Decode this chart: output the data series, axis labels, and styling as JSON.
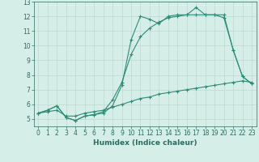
{
  "title": "",
  "xlabel": "Humidex (Indice chaleur)",
  "ylabel": "",
  "x_values": [
    0,
    1,
    2,
    3,
    4,
    5,
    6,
    7,
    8,
    9,
    10,
    11,
    12,
    13,
    14,
    15,
    16,
    17,
    18,
    19,
    20,
    21,
    22,
    23
  ],
  "line1": [
    5.4,
    5.6,
    5.9,
    5.1,
    4.9,
    5.2,
    5.3,
    5.4,
    5.9,
    7.3,
    10.4,
    12.0,
    11.8,
    11.5,
    12.0,
    12.1,
    12.1,
    12.6,
    12.1,
    12.1,
    11.9,
    9.7,
    7.9,
    7.4
  ],
  "line2": [
    5.4,
    5.6,
    5.9,
    5.1,
    4.9,
    5.2,
    5.3,
    5.5,
    6.3,
    7.5,
    9.4,
    10.6,
    11.2,
    11.6,
    11.9,
    12.0,
    12.1,
    12.1,
    12.1,
    12.1,
    12.1,
    9.7,
    7.9,
    7.4
  ],
  "line3": [
    5.4,
    5.5,
    5.6,
    5.2,
    5.2,
    5.4,
    5.5,
    5.6,
    5.8,
    6.0,
    6.2,
    6.4,
    6.5,
    6.7,
    6.8,
    6.9,
    7.0,
    7.1,
    7.2,
    7.3,
    7.4,
    7.5,
    7.6,
    7.5
  ],
  "line_color": "#2E8B78",
  "bg_color": "#D6EEE8",
  "grid_color": "#C0D8D2",
  "ylim": [
    4.5,
    13
  ],
  "xlim": [
    -0.5,
    23.5
  ],
  "yticks": [
    5,
    6,
    7,
    8,
    9,
    10,
    11,
    12,
    13
  ],
  "xticks": [
    0,
    1,
    2,
    3,
    4,
    5,
    6,
    7,
    8,
    9,
    10,
    11,
    12,
    13,
    14,
    15,
    16,
    17,
    18,
    19,
    20,
    21,
    22,
    23
  ],
  "marker": "+",
  "marker_size": 3,
  "line_width": 0.8,
  "font_color": "#2E6B60",
  "tick_fontsize": 5.5,
  "xlabel_fontsize": 6.5
}
